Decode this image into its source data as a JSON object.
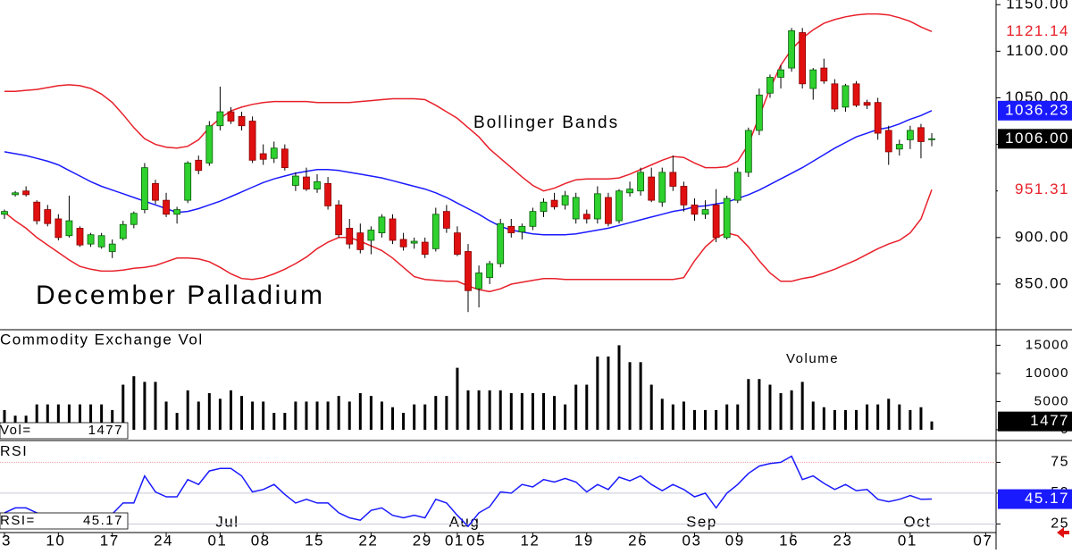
{
  "chart_data": [
    {
      "type": "candlestick",
      "title": "December Palladium",
      "annotation": "Bollinger Bands",
      "categories": [
        "03",
        null,
        null,
        null,
        null,
        "10",
        null,
        null,
        null,
        null,
        "17",
        null,
        null,
        null,
        null,
        "24",
        null,
        null,
        null,
        null,
        "01",
        null,
        null,
        null,
        "08",
        null,
        null,
        null,
        null,
        "15",
        null,
        null,
        null,
        null,
        "22",
        null,
        null,
        null,
        null,
        "29",
        null,
        null,
        "01",
        null,
        "05",
        null,
        null,
        null,
        null,
        "12",
        null,
        null,
        null,
        null,
        "19",
        null,
        null,
        null,
        null,
        "26",
        null,
        null,
        null,
        null,
        "03",
        null,
        null,
        null,
        "09",
        null,
        null,
        null,
        null,
        "16",
        null,
        null,
        null,
        null,
        "23",
        null,
        null,
        null,
        null,
        null,
        "01",
        null,
        null
      ],
      "months": [
        null,
        null,
        null,
        null,
        null,
        null,
        null,
        null,
        null,
        null,
        null,
        null,
        null,
        null,
        null,
        null,
        null,
        null,
        null,
        null,
        "Jul",
        null,
        null,
        null,
        null,
        null,
        null,
        null,
        null,
        null,
        null,
        null,
        null,
        null,
        null,
        null,
        null,
        null,
        null,
        null,
        null,
        null,
        "Aug",
        null,
        null,
        null,
        null,
        null,
        null,
        null,
        null,
        null,
        null,
        null,
        null,
        null,
        null,
        null,
        null,
        null,
        null,
        null,
        null,
        null,
        "Sep",
        null,
        null,
        null,
        null,
        null,
        null,
        null,
        null,
        null,
        null,
        null,
        null,
        null,
        null,
        null,
        null,
        null,
        null,
        null,
        "Oct",
        null,
        null
      ],
      "next_category": "07",
      "open": [
        925,
        946,
        950,
        938,
        930,
        920,
        902,
        910,
        893,
        890,
        885,
        899,
        914,
        930,
        958,
        940,
        925,
        940,
        983,
        980,
        1020,
        1035,
        1030,
        1025,
        990,
        985,
        995,
        956,
        965,
        952,
        958,
        935,
        910,
        905,
        897,
        905,
        920,
        898,
        894,
        895,
        888,
        928,
        905,
        885,
        845,
        857,
        872,
        912,
        906,
        912,
        928,
        940,
        935,
        920,
        925,
        920,
        943,
        918,
        948,
        950,
        965,
        938,
        970,
        955,
        935,
        925,
        935,
        900,
        940,
        970,
        1015,
        1055,
        1072,
        1082,
        1120,
        1060,
        1082,
        1065,
        1040,
        1065,
        1045,
        1045,
        1015,
        995,
        1005,
        1018,
        1006
      ],
      "high": [
        930,
        950,
        955,
        940,
        935,
        925,
        945,
        912,
        905,
        905,
        898,
        918,
        928,
        980,
        962,
        948,
        933,
        982,
        988,
        1025,
        1062,
        1040,
        1035,
        1030,
        1000,
        1003,
        1000,
        970,
        975,
        968,
        965,
        940,
        920,
        915,
        912,
        925,
        925,
        905,
        900,
        900,
        932,
        935,
        912,
        893,
        870,
        875,
        920,
        920,
        915,
        932,
        942,
        948,
        950,
        948,
        930,
        955,
        948,
        952,
        960,
        975,
        975,
        975,
        988,
        960,
        942,
        940,
        952,
        945,
        975,
        1018,
        1060,
        1075,
        1085,
        1125,
        1125,
        1082,
        1092,
        1070,
        1065,
        1068,
        1048,
        1050,
        1020,
        1005,
        1020,
        1022,
        1012
      ],
      "low": [
        920,
        944,
        944,
        914,
        912,
        897,
        900,
        890,
        890,
        888,
        878,
        897,
        910,
        926,
        936,
        922,
        915,
        937,
        968,
        977,
        1015,
        1022,
        1015,
        980,
        978,
        980,
        972,
        950,
        950,
        948,
        930,
        900,
        888,
        883,
        882,
        900,
        893,
        886,
        888,
        878,
        885,
        905,
        880,
        820,
        825,
        850,
        868,
        900,
        898,
        908,
        922,
        930,
        930,
        915,
        915,
        915,
        912,
        915,
        944,
        945,
        938,
        933,
        950,
        928,
        918,
        920,
        895,
        898,
        937,
        965,
        1010,
        1050,
        1060,
        1078,
        1060,
        1048,
        1065,
        1035,
        1035,
        1040,
        1038,
        1005,
        978,
        988,
        995,
        985,
        998
      ],
      "close": [
        928,
        948,
        946,
        918,
        915,
        900,
        918,
        892,
        903,
        902,
        893,
        914,
        926,
        975,
        940,
        925,
        930,
        980,
        972,
        1020,
        1035,
        1025,
        1020,
        983,
        984,
        996,
        975,
        966,
        952,
        960,
        934,
        903,
        893,
        887,
        908,
        922,
        897,
        890,
        896,
        882,
        925,
        910,
        882,
        843,
        862,
        872,
        915,
        905,
        912,
        928,
        938,
        933,
        945,
        943,
        920,
        947,
        915,
        950,
        952,
        970,
        940,
        970,
        955,
        935,
        925,
        930,
        900,
        942,
        970,
        1015,
        1053,
        1072,
        1080,
        1122,
        1065,
        1080,
        1068,
        1038,
        1063,
        1042,
        1042,
        1012,
        992,
        1000,
        1015,
        1003,
        1006
      ],
      "up_color": "#2ed12e",
      "down_color": "#e01010",
      "last_price": {
        "value": 1006,
        "label": "1006.00"
      },
      "bands": [
        {
          "color": "#e8202a",
          "values": [
            1057,
            1057,
            1058,
            1059,
            1061,
            1063,
            1064,
            1063,
            1060,
            1054,
            1045,
            1032,
            1018,
            1006,
            1000,
            997,
            996,
            998,
            1005,
            1018,
            1028,
            1036,
            1040,
            1043,
            1045,
            1046,
            1046,
            1046,
            1046,
            1045,
            1045,
            1045,
            1045,
            1046,
            1047,
            1048,
            1049,
            1049,
            1049,
            1048,
            1042,
            1035,
            1028,
            1018,
            1008,
            995,
            985,
            975,
            965,
            956,
            950,
            953,
            958,
            962,
            963,
            963,
            963,
            964,
            968,
            973,
            978,
            983,
            987,
            986,
            980,
            975,
            975,
            976,
            982,
            1000,
            1030,
            1060,
            1085,
            1102,
            1114,
            1123,
            1130,
            1134,
            1137,
            1139,
            1140,
            1140,
            1139,
            1136,
            1132,
            1126,
            1121.14
          ]
        },
        {
          "color": "#1a1aff",
          "values": [
            992,
            990,
            988,
            985,
            982,
            978,
            972,
            966,
            960,
            955,
            951,
            947,
            943,
            939,
            935,
            931,
            927,
            928,
            931,
            935,
            939,
            944,
            949,
            954,
            959,
            963,
            966,
            969,
            971,
            973,
            973,
            972,
            970,
            968,
            966,
            964,
            961,
            958,
            955,
            952,
            948,
            943,
            937,
            931,
            925,
            918,
            912,
            908,
            906,
            904,
            903,
            903,
            903,
            904,
            906,
            908,
            910,
            913,
            916,
            919,
            922,
            925,
            928,
            930,
            933,
            934,
            936,
            938,
            942,
            946,
            951,
            957,
            963,
            969,
            975,
            982,
            989,
            996,
            1002,
            1008,
            1012,
            1016,
            1018,
            1022,
            1027,
            1031,
            1036.23
          ]
        },
        {
          "color": "#e8202a",
          "values": [
            927,
            918,
            910,
            900,
            892,
            884,
            876,
            869,
            866,
            864,
            864,
            865,
            867,
            868,
            870,
            874,
            878,
            878,
            877,
            874,
            868,
            861,
            856,
            855,
            857,
            861,
            866,
            872,
            879,
            888,
            895,
            900,
            900,
            896,
            891,
            886,
            878,
            868,
            858,
            855,
            854,
            853,
            853,
            848,
            844,
            842,
            845,
            850,
            852,
            854,
            856,
            856,
            855,
            855,
            855,
            855,
            855,
            855,
            855,
            855,
            855,
            855,
            855,
            857,
            875,
            890,
            900,
            905,
            902,
            890,
            875,
            862,
            853,
            853,
            856,
            858,
            862,
            866,
            871,
            876,
            882,
            888,
            893,
            897,
            905,
            920,
            951.31
          ]
        }
      ],
      "ylim": [
        802,
        1155
      ],
      "yticks": [
        {
          "value": 850,
          "label": "850.00"
        },
        {
          "value": 900,
          "label": "900.00"
        },
        {
          "value": 950,
          "label": "950.00"
        },
        {
          "value": 1000,
          "label": "1000.00"
        },
        {
          "value": 1050,
          "label": "1050.00"
        },
        {
          "value": 1100,
          "label": "1100.00"
        },
        {
          "value": 1150,
          "label": "1150.00"
        }
      ]
    },
    {
      "type": "bar",
      "title": "Commodity Exchange Vol",
      "annotation": "Volume",
      "label_prefix": "Vol=",
      "values": [
        3500,
        2500,
        2500,
        4500,
        4500,
        4500,
        4500,
        4500,
        4500,
        4500,
        3500,
        8000,
        9500,
        8500,
        8500,
        5000,
        3000,
        7000,
        5000,
        6500,
        5500,
        7000,
        6000,
        5000,
        5000,
        3000,
        3000,
        5000,
        5000,
        5000,
        5000,
        6000,
        5000,
        6500,
        6000,
        5000,
        4000,
        3000,
        4500,
        4500,
        6000,
        6000,
        11000,
        7000,
        7000,
        7000,
        7000,
        6500,
        6500,
        6500,
        6500,
        6000,
        4500,
        8000,
        8000,
        13000,
        13000,
        15000,
        12000,
        12000,
        8000,
        5500,
        4500,
        5000,
        3500,
        3500,
        3500,
        4500,
        4500,
        9000,
        9000,
        8000,
        6500,
        7000,
        8500,
        5000,
        4000,
        3500,
        3500,
        3500,
        4500,
        4500,
        5500,
        4500,
        3500,
        4000,
        1477
      ],
      "color": "#000000",
      "ylim": [
        -1750,
        17600
      ],
      "yticks": [
        0,
        5000,
        10000,
        15000
      ]
    },
    {
      "type": "line",
      "title": "RSI",
      "label_prefix": "RSI=",
      "values": [
        34,
        38,
        38,
        34,
        30,
        30,
        30,
        32,
        28,
        28,
        33,
        42,
        42,
        64,
        51,
        47,
        47,
        61,
        57,
        68,
        70,
        70,
        64,
        51,
        53,
        57,
        49,
        42,
        45,
        42,
        42,
        34,
        30,
        28,
        36,
        38,
        32,
        30,
        32,
        30,
        45,
        42,
        32,
        23,
        34,
        39,
        51,
        50,
        57,
        55,
        61,
        59,
        62,
        59,
        51,
        57,
        53,
        63,
        60,
        64,
        57,
        52,
        57,
        53,
        47,
        50,
        38,
        50,
        57,
        66,
        72,
        74,
        75,
        80,
        61,
        64,
        58,
        53,
        57,
        52,
        53,
        45,
        43,
        45,
        48,
        45,
        45.17
      ],
      "color": "#1a1aff",
      "ylim": [
        18,
        92
      ],
      "yticks": [
        25,
        50,
        75
      ],
      "grid": true
    }
  ]
}
